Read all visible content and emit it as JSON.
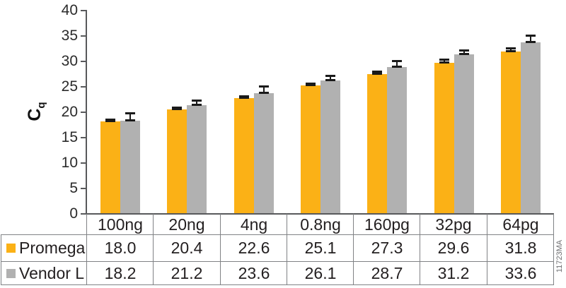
{
  "watermark": "11723MA",
  "colors": {
    "background": "#FFFFFF",
    "axis": "#58595B",
    "tick_label": "#2B2B2B",
    "table_border": "#808285",
    "error_bar": "#1A1A1A",
    "watermark_text": "#6D6E71",
    "promega_orange": "#FBB116",
    "vendor_gray": "#B1B1B1"
  },
  "chart_data": {
    "type": "bar",
    "title": "",
    "xlabel": "",
    "ylabel": "C",
    "ylabel_sub": "q",
    "ylim": [
      0,
      40
    ],
    "yticks": [
      0,
      5,
      10,
      15,
      20,
      25,
      30,
      35,
      40
    ],
    "grid": false,
    "legend_position": "table-rows-left",
    "categories": [
      "100ng",
      "20ng",
      "4ng",
      "0.8ng",
      "160pg",
      "32pg",
      "64pg"
    ],
    "series": [
      {
        "name": "Promega",
        "color": "#FBB116",
        "values": [
          18.0,
          20.4,
          22.6,
          25.1,
          27.3,
          29.6,
          31.8
        ],
        "errors": [
          0.3,
          0.3,
          0.35,
          0.3,
          0.45,
          0.6,
          0.5
        ]
      },
      {
        "name": "Vendor L",
        "color": "#B1B1B1",
        "values": [
          18.2,
          21.2,
          23.6,
          26.1,
          28.7,
          31.2,
          33.6
        ],
        "errors": [
          1.4,
          0.9,
          1.3,
          0.9,
          1.1,
          0.8,
          1.2
        ]
      }
    ]
  }
}
